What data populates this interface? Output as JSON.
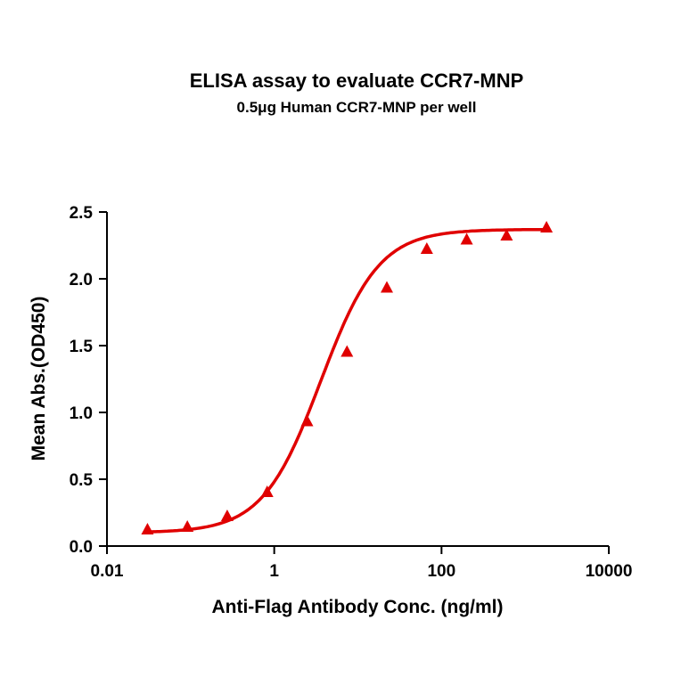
{
  "chart_data": {
    "type": "scatter",
    "title": "ELISA assay to evaluate CCR7-MNP",
    "subtitle": "0.5μg Human CCR7-MNP per well",
    "xlabel": "Anti-Flag Antibody Conc. (ng/ml)",
    "ylabel": "Mean Abs.(OD450)",
    "x_scale": "log",
    "xlim": [
      0.01,
      10000
    ],
    "ylim": [
      0,
      2.5
    ],
    "x_ticks": [
      "0.01",
      "1",
      "100",
      "10000"
    ],
    "x_tick_values": [
      0.01,
      1,
      100,
      10000
    ],
    "y_ticks": [
      "0.0",
      "0.5",
      "1.0",
      "1.5",
      "2.0",
      "2.5"
    ],
    "y_tick_values": [
      0,
      0.5,
      1.0,
      1.5,
      2.0,
      2.5
    ],
    "grid": false,
    "marker": "triangle",
    "fit_curve": "sigmoidal 4PL",
    "color": "#e00000",
    "series": [
      {
        "x": [
          0.0305,
          0.0914,
          0.274,
          0.823,
          2.47,
          7.41,
          22.2,
          66.7,
          200,
          600,
          1800
        ],
        "y": [
          0.12,
          0.14,
          0.22,
          0.4,
          0.93,
          1.45,
          1.93,
          2.22,
          2.29,
          2.32,
          2.38
        ]
      }
    ]
  }
}
